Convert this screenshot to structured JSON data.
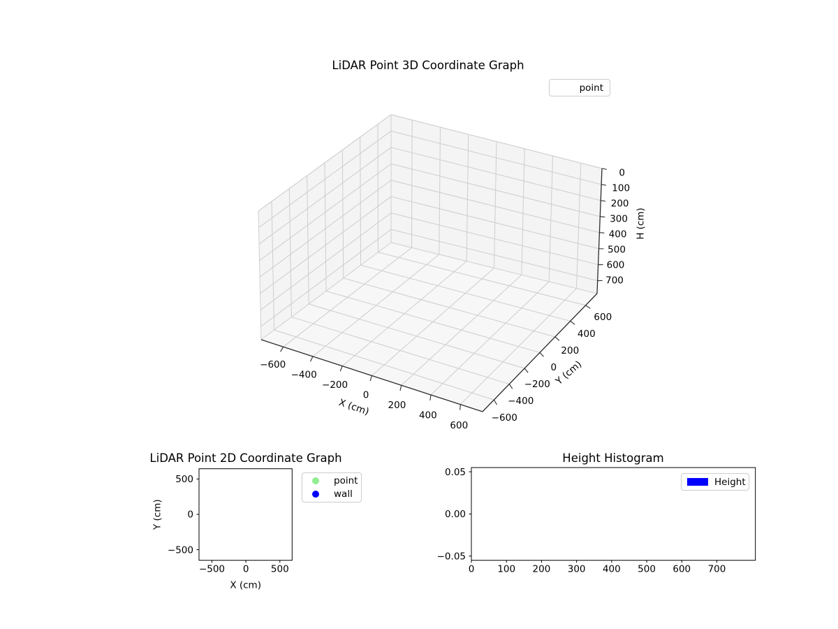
{
  "figure": {
    "background": "#ffffff",
    "colors": {
      "axis_line": "#2b2b2b",
      "spine": "#000000",
      "grid_line": "#cdcdcd",
      "pane_wall": "#f4f4f5",
      "pane_floor": "#f7f7f7",
      "text": "#000000",
      "legend_border": "#cccccc",
      "point_green": "#90EE90",
      "wall_blue": "#0000FF",
      "height_blue": "#0000FF"
    }
  },
  "chart_data": [
    {
      "id": "coord3d",
      "type": "scatter3d",
      "title": "LiDAR Point 3D Coordinate Graph",
      "xlabel": "X (cm)",
      "ylabel": "Y (cm)",
      "zlabel": "H (cm)",
      "xlim": [
        -750,
        750
      ],
      "ylim": [
        -750,
        750
      ],
      "zlim": [
        0,
        780
      ],
      "xticks": [
        -600,
        -400,
        -200,
        0,
        200,
        400,
        600
      ],
      "yticks": [
        -600,
        -400,
        -200,
        0,
        200,
        400,
        600
      ],
      "zticks": [
        0,
        100,
        200,
        300,
        400,
        500,
        600,
        700
      ],
      "zaxis_inverted": true,
      "grid": true,
      "legend": {
        "position": "upper right",
        "items": [
          {
            "label": "point",
            "marker": "none",
            "color": null
          }
        ]
      },
      "points": []
    },
    {
      "id": "coord2d",
      "type": "scatter",
      "title": "LiDAR Point 2D Coordinate Graph",
      "xlabel": "X (cm)",
      "ylabel": "Y (cm)",
      "xlim": [
        -690,
        680
      ],
      "ylim": [
        -650,
        645
      ],
      "xticks": [
        -500,
        0,
        500
      ],
      "yticks": [
        -500,
        0,
        500
      ],
      "grid": false,
      "legend": {
        "position": "outside upper right",
        "items": [
          {
            "label": "point",
            "marker": "circle",
            "color": "#90EE90"
          },
          {
            "label": "wall",
            "marker": "circle",
            "color": "#0000FF"
          }
        ]
      },
      "points": []
    },
    {
      "id": "height_hist",
      "type": "bar",
      "title": "Height Histogram",
      "xlabel": "",
      "ylabel": "",
      "xlim": [
        0,
        810
      ],
      "ylim": [
        -0.055,
        0.055
      ],
      "xticks": [
        0,
        100,
        200,
        300,
        400,
        500,
        600,
        700
      ],
      "ytick_values": [
        -0.05,
        0,
        0.05
      ],
      "ytick_labels": [
        "−0.05",
        "0.00",
        "0.05"
      ],
      "grid": false,
      "legend": {
        "position": "upper right",
        "items": [
          {
            "label": "Height",
            "marker": "rect",
            "color": "#0000FF"
          }
        ]
      },
      "values": []
    }
  ]
}
